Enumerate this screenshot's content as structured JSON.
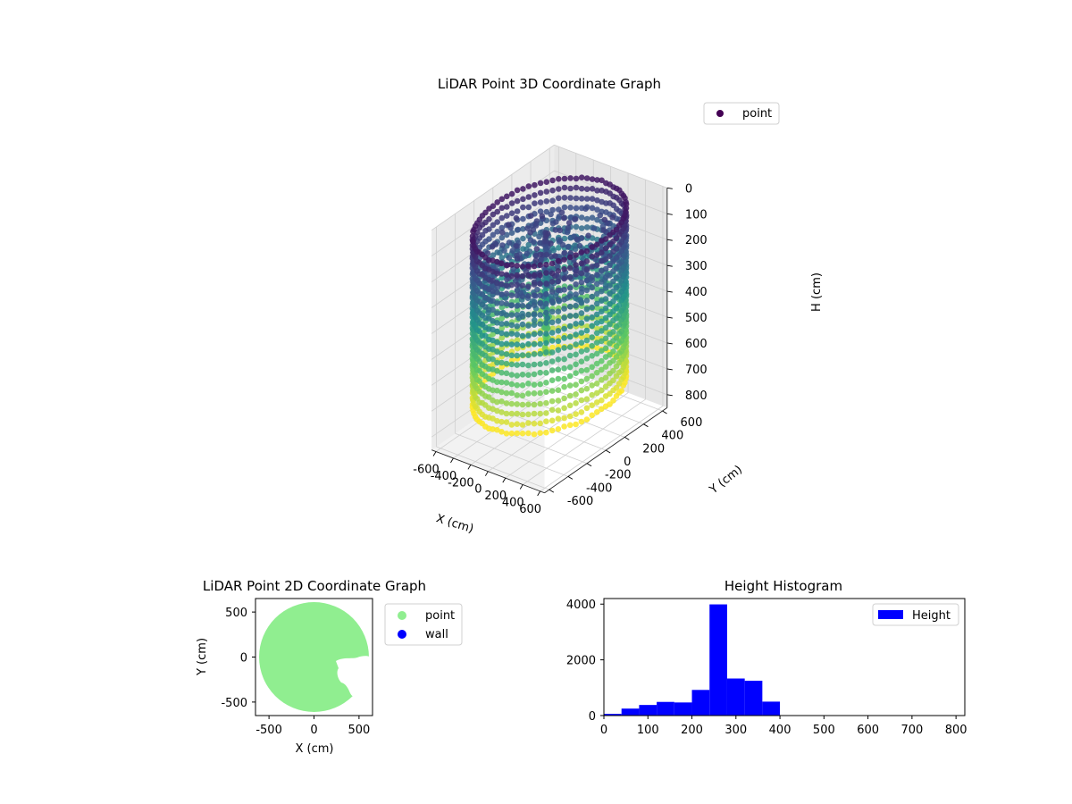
{
  "chart_data": [
    {
      "type": "scatter",
      "projection": "3d",
      "title": "LiDAR Point 3D Coordinate Graph",
      "xlabel": "X (cm)",
      "ylabel": "Y (cm)",
      "zlabel": "H (cm)",
      "xlim": [
        -650,
        650
      ],
      "ylim": [
        -650,
        650
      ],
      "zlim": [
        0,
        850
      ],
      "z_inverted": true,
      "x_ticks": [
        "-600",
        "-400",
        "-200",
        "0",
        "200",
        "400",
        "600"
      ],
      "y_ticks": [
        "-600",
        "-400",
        "-200",
        "0",
        "200",
        "400",
        "600"
      ],
      "z_ticks": [
        "0",
        "100",
        "200",
        "300",
        "400",
        "500",
        "600",
        "700",
        "800"
      ],
      "colormap": "viridis",
      "legend": "top-right",
      "series": [
        {
          "name": "point",
          "marker_color": "#440154",
          "shape": "cylindrical wall",
          "radius": 600,
          "height_range": [
            50,
            700
          ],
          "ceiling_points_radius": [
            0,
            560
          ],
          "column_points": {
            "x": [
              -120,
              -100,
              -80
            ],
            "y": [
              80,
              60,
              40
            ],
            "h_range": [
              120,
              600
            ]
          }
        }
      ]
    },
    {
      "type": "scatter",
      "title": "LiDAR Point 2D Coordinate Graph",
      "xlabel": "X (cm)",
      "ylabel": "Y (cm)",
      "xlim": [
        -650,
        650
      ],
      "ylim": [
        -650,
        650
      ],
      "x_ticks": [
        "-500",
        "0",
        "500"
      ],
      "y_ticks": [
        "500",
        "0",
        "-500"
      ],
      "legend": "outside-right",
      "series": [
        {
          "name": "point",
          "color": "#90ee90",
          "shape": "filled disc",
          "center": [
            0,
            0
          ],
          "radius": 610
        },
        {
          "name": "wall",
          "color": "#0000ff"
        }
      ]
    },
    {
      "type": "bar",
      "histogram": true,
      "title": "Height Histogram",
      "xlim": [
        0,
        820
      ],
      "ylim": [
        0,
        4200
      ],
      "x_ticks": [
        "0",
        "100",
        "200",
        "300",
        "400",
        "500",
        "600",
        "700",
        "800"
      ],
      "y_ticks": [
        "0",
        "2000",
        "4000"
      ],
      "bar_color": "#0000ff",
      "legend": "top-right",
      "series": [
        {
          "name": "Height",
          "bin_edges": [
            0,
            40,
            80,
            120,
            160,
            200,
            240,
            280,
            320,
            360,
            400,
            440,
            480,
            520,
            560,
            600,
            640,
            680,
            720,
            760,
            800
          ],
          "values": [
            60,
            250,
            380,
            490,
            470,
            920,
            3990,
            1330,
            1250,
            500,
            0,
            0,
            0,
            0,
            0,
            0,
            0,
            0,
            0,
            0
          ]
        }
      ]
    }
  ]
}
